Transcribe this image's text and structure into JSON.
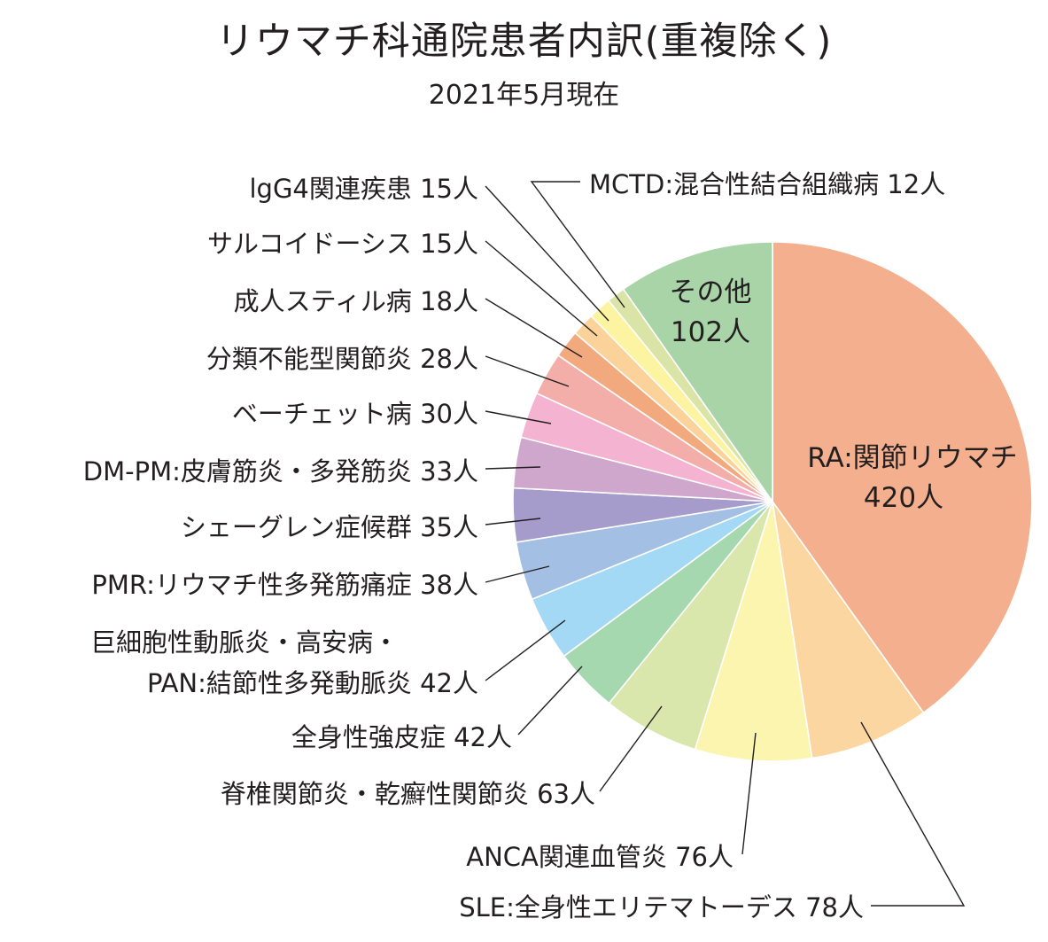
{
  "title": "リウマチ科通院患者内訳(重複除く)",
  "subtitle": "2021年5月現在",
  "chart_data": {
    "type": "pie",
    "title": "リウマチ科通院患者内訳(重複除く)",
    "subtitle": "2021年5月現在",
    "slices": [
      {
        "label": "RA:関節リウマチ",
        "value": 420,
        "display": "420人",
        "color": "#f4b08e"
      },
      {
        "label": "SLE:全身性エリテマトーデス",
        "value": 78,
        "display": "78人",
        "color": "#fbd6a0"
      },
      {
        "label": "ANCA関連血管炎",
        "value": 76,
        "display": "76人",
        "color": "#fcf5b0"
      },
      {
        "label": "脊椎関節炎・乾癬性関節炎",
        "value": 63,
        "display": "63人",
        "color": "#d9e7ac"
      },
      {
        "label": "全身性強皮症",
        "value": 42,
        "display": "42人",
        "color": "#a5d8ae"
      },
      {
        "label": "巨細胞性動脈炎・高安病・PAN:結節性多発動脈炎",
        "value": 42,
        "display": "42人",
        "color": "#a3d9f4"
      },
      {
        "label": "PMR:リウマチ性多発筋痛症",
        "value": 38,
        "display": "38人",
        "color": "#a3bfe3"
      },
      {
        "label": "シェーグレン症候群",
        "value": 35,
        "display": "35人",
        "color": "#a69ccb"
      },
      {
        "label": "DM-PM:皮膚筋炎・多発筋炎",
        "value": 33,
        "display": "33人",
        "color": "#cfa6cc"
      },
      {
        "label": "ベーチェット病",
        "value": 30,
        "display": "30人",
        "color": "#f4b3d1"
      },
      {
        "label": "分類不能型関節炎",
        "value": 28,
        "display": "28人",
        "color": "#f3aea9"
      },
      {
        "label": "成人スティル病",
        "value": 18,
        "display": "18人",
        "color": "#f3a97e"
      },
      {
        "label": "サルコイドーシス",
        "value": 15,
        "display": "15人",
        "color": "#fbd29a"
      },
      {
        "label": "IgG4関連疾患",
        "value": 15,
        "display": "15人",
        "color": "#fdf4a1"
      },
      {
        "label": "MCTD:混合性結合組織病",
        "value": 12,
        "display": "12人",
        "color": "#d9e4a6"
      },
      {
        "label": "その他",
        "value": 102,
        "display": "102人",
        "color": "#a8d4a8"
      }
    ]
  },
  "labels": {
    "ra_line1": "RA:関節リウマチ",
    "ra_line2": "420人",
    "other_line1": "その他",
    "other_line2": "102人",
    "sle": "SLE:全身性エリテマトーデス 78人",
    "anca": "ANCA関連血管炎 76人",
    "spa": "脊椎関節炎・乾癬性関節炎 63人",
    "ssc": "全身性強皮症 42人",
    "gca_line1": "巨細胞性動脈炎・高安病・",
    "gca_line2": "PAN:結節性多発動脈炎 42人",
    "pmr": "PMR:リウマチ性多発筋痛症 38人",
    "sjs": "シェーグレン症候群 35人",
    "dm": "DM-PM:皮膚筋炎・多発筋炎 33人",
    "behcet": "ベーチェット病 30人",
    "uia": "分類不能型関節炎 28人",
    "still": "成人スティル病 18人",
    "sarc": "サルコイドーシス 15人",
    "igg4": "lgG4関連疾患 15人",
    "mctd": "MCTD:混合性結合組織病 12人"
  }
}
